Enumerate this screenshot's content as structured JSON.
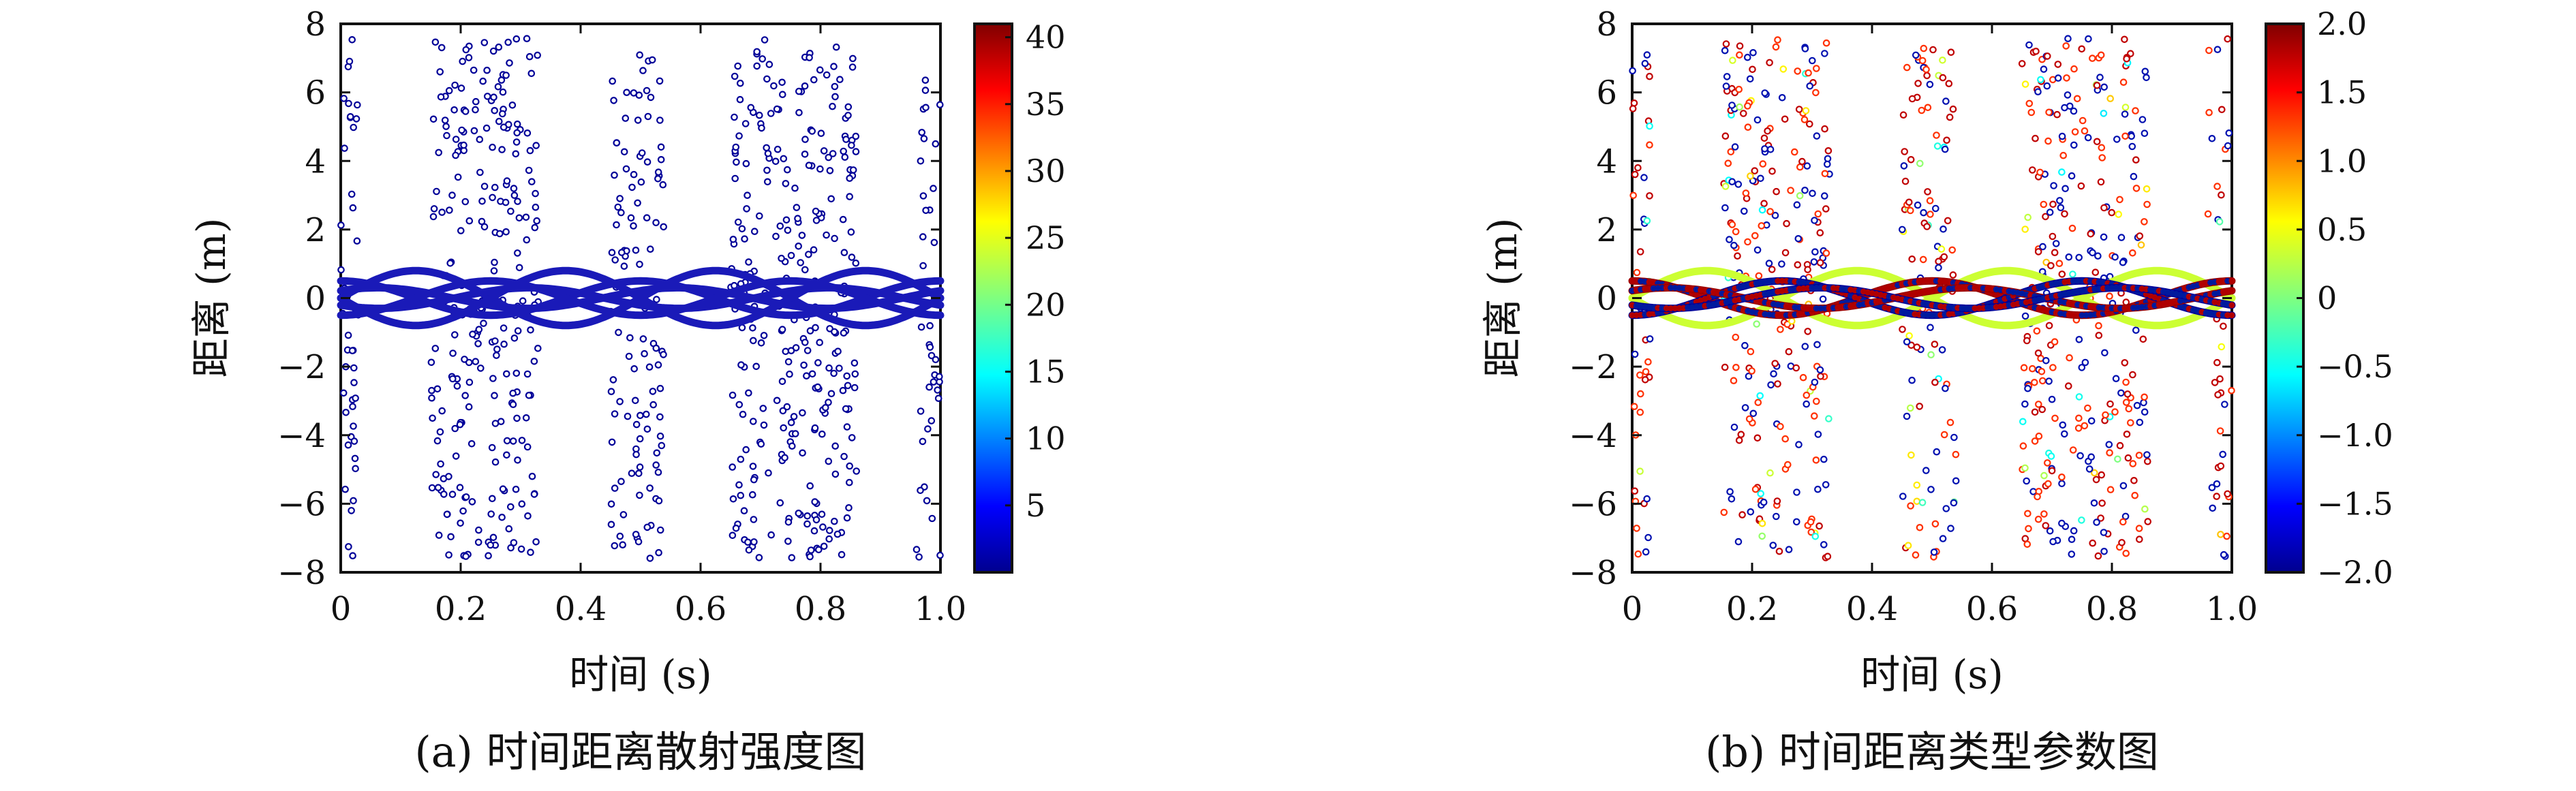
{
  "figure": {
    "panels": [
      {
        "caption": "(a) 时间距离散射强度图",
        "xlabel": "时间 (s)",
        "ylabel": "距离 (m)",
        "colorbar_ticks": [
          "5",
          "10",
          "15",
          "20",
          "25",
          "30",
          "35",
          "40"
        ]
      },
      {
        "caption": "(b) 时间距离类型参数图",
        "xlabel": "时间 (s)",
        "ylabel": "距离 (m)",
        "colorbar_ticks": [
          "−2.0",
          "−1.5",
          "−1.0",
          "−0.5",
          "0",
          "0.5",
          "1.0",
          "1.5",
          "2.0"
        ]
      }
    ]
  },
  "chart_data": [
    {
      "type": "scatter",
      "title": "",
      "caption": "(a) 时间距离散射强度图",
      "xlabel": "时间 (s)",
      "ylabel": "距离 (m)",
      "xlim": [
        0,
        1.0
      ],
      "ylim": [
        -8,
        8
      ],
      "xticks": [
        "0",
        "0.2",
        "0.4",
        "0.6",
        "0.8",
        "1.0"
      ],
      "yticks": [
        "−8",
        "−6",
        "−4",
        "−2",
        "0",
        "2",
        "4",
        "6",
        "8"
      ],
      "grid": false,
      "colormap": "jet",
      "colorbar": {
        "min": 0,
        "max": 41,
        "ticks": [
          5,
          10,
          15,
          20,
          25,
          30,
          35,
          40
        ]
      },
      "tracks": {
        "description_in_data_units": "sinusoidal target range tracks y = A*sin(2*pi*f*t + phase)",
        "series": [
          {
            "amplitude": 0.8,
            "period": 0.5,
            "phase": 0.0,
            "color_value": 1
          },
          {
            "amplitude": 0.8,
            "period": 0.5,
            "phase": 3.1416,
            "color_value": 1
          },
          {
            "amplitude": 0.5,
            "period": 0.5,
            "phase": 1.5708,
            "color_value": 1
          },
          {
            "amplitude": 0.5,
            "period": 0.5,
            "phase": -1.5708,
            "color_value": 1
          },
          {
            "amplitude": 0.3,
            "period": 0.5,
            "phase": 0.8,
            "color_value": 1
          },
          {
            "amplitude": 0.3,
            "period": 0.5,
            "phase": 3.9,
            "color_value": 1
          }
        ]
      },
      "clutter_bands": [
        {
          "t_min": 0.0,
          "t_max": 0.03,
          "count": 45
        },
        {
          "t_min": 0.15,
          "t_max": 0.33,
          "count": 260
        },
        {
          "t_min": 0.45,
          "t_max": 0.54,
          "count": 120
        },
        {
          "t_min": 0.65,
          "t_max": 0.86,
          "count": 300
        },
        {
          "t_min": 0.96,
          "t_max": 1.0,
          "count": 40
        }
      ],
      "clutter_color_value": 1
    },
    {
      "type": "scatter",
      "title": "",
      "caption": "(b) 时间距离类型参数图",
      "xlabel": "时间 (s)",
      "ylabel": "距离 (m)",
      "xlim": [
        0,
        1.0
      ],
      "ylim": [
        -8,
        8
      ],
      "xticks": [
        "0",
        "0.2",
        "0.4",
        "0.6",
        "0.8",
        "1.0"
      ],
      "yticks": [
        "−8",
        "−6",
        "−4",
        "−2",
        "0",
        "2",
        "4",
        "6",
        "8"
      ],
      "grid": false,
      "colormap": "jet",
      "colorbar": {
        "min": -2.0,
        "max": 2.0,
        "ticks": [
          -2.0,
          -1.5,
          -1.0,
          -0.5,
          0,
          0.5,
          1.0,
          1.5,
          2.0
        ]
      },
      "tracks": {
        "description_in_data_units": "same sinusoidal tracks; outer pair light green, inner tracks mixed red/blue",
        "series": [
          {
            "amplitude": 0.8,
            "period": 0.5,
            "phase": 0.0,
            "color_value": 0.3
          },
          {
            "amplitude": 0.8,
            "period": 0.5,
            "phase": 3.1416,
            "color_value": 0.3
          },
          {
            "amplitude": 0.5,
            "period": 0.5,
            "phase": 1.5708,
            "color_value": 1.9
          },
          {
            "amplitude": 0.5,
            "period": 0.5,
            "phase": -1.5708,
            "color_value": -1.9
          },
          {
            "amplitude": 0.3,
            "period": 0.5,
            "phase": 0.8,
            "color_value": 1.9
          },
          {
            "amplitude": 0.3,
            "period": 0.5,
            "phase": 3.9,
            "color_value": -1.9
          }
        ]
      },
      "clutter_bands": [
        {
          "t_min": 0.0,
          "t_max": 0.03,
          "count": 45
        },
        {
          "t_min": 0.15,
          "t_max": 0.33,
          "count": 260
        },
        {
          "t_min": 0.45,
          "t_max": 0.54,
          "count": 120
        },
        {
          "t_min": 0.65,
          "t_max": 0.86,
          "count": 300
        },
        {
          "t_min": 0.96,
          "t_max": 1.0,
          "count": 40
        }
      ],
      "clutter_color_mix": {
        "red_fraction": 0.55,
        "blue_fraction": 0.35,
        "other_fraction": 0.1
      }
    }
  ]
}
